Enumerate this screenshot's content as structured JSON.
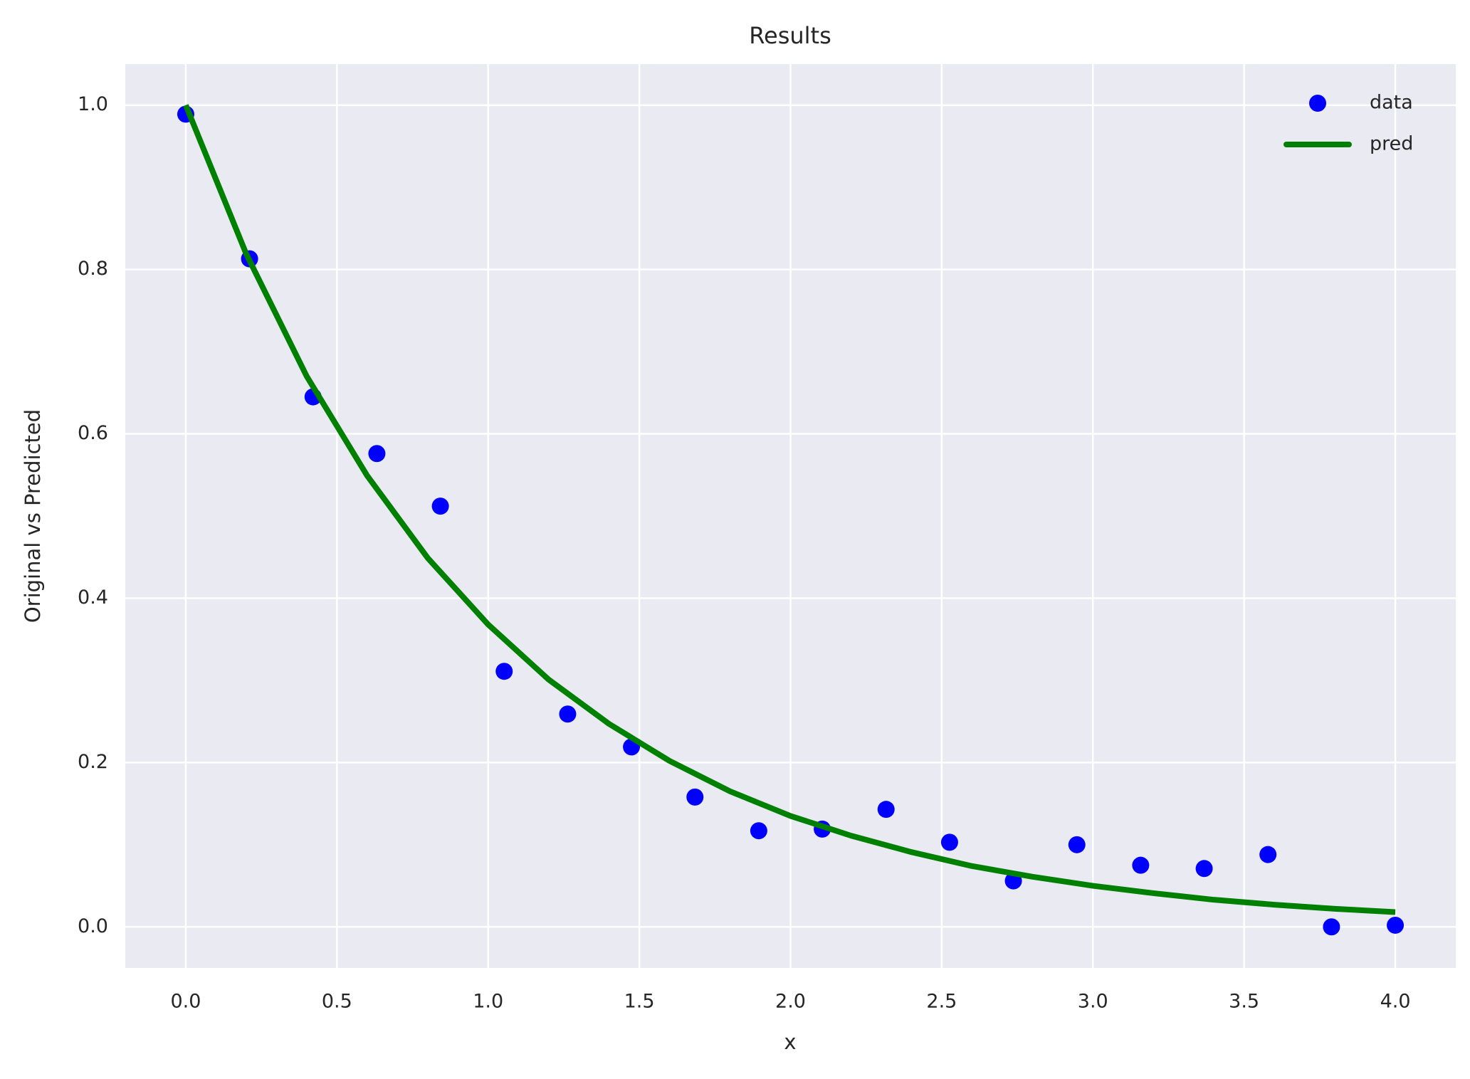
{
  "chart_data": {
    "type": "line",
    "title": "Results",
    "x_label": "x",
    "y_label": "Original vs Predicted",
    "xlim": [
      -0.2,
      4.2
    ],
    "ylim": [
      -0.05,
      1.05
    ],
    "xticks": [
      {
        "value": 0,
        "label": "0.0"
      },
      0.5,
      {
        "value": 1,
        "label": "1.0"
      },
      1.5,
      {
        "value": 2,
        "label": "2.0"
      },
      2.5,
      {
        "value": 3,
        "label": "3.0"
      },
      3.5,
      {
        "value": 4,
        "label": "4.0"
      }
    ],
    "yticks": [
      {
        "value": 0,
        "label": "0.0"
      },
      0.2,
      0.4,
      0.6,
      0.8,
      {
        "value": 1,
        "label": "1.0"
      }
    ],
    "grid": true,
    "legend": "upper right",
    "series": [
      {
        "name": "data",
        "color": "#0000ff",
        "mode": "markers",
        "x": [
          0,
          0.211,
          0.421,
          0.632,
          0.842,
          1.053,
          1.263,
          1.474,
          1.684,
          1.895,
          2.105,
          2.316,
          2.526,
          2.737,
          2.947,
          3.158,
          3.368,
          3.579,
          3.789,
          4.0
        ],
        "values": [
          0.989,
          0.813,
          0.645,
          0.576,
          0.512,
          0.311,
          0.259,
          0.219,
          0.158,
          0.117,
          0.119,
          0.143,
          0.103,
          0.056,
          0.1,
          0.075,
          0.071,
          0.088,
          0.0,
          0.002
        ]
      },
      {
        "name": "pred",
        "color": "#008000",
        "mode": "line",
        "x": [
          0,
          0.2,
          0.4,
          0.6,
          0.8,
          1.0,
          1.2,
          1.4,
          1.6,
          1.8,
          2.0,
          2.2,
          2.4,
          2.6,
          2.8,
          3.0,
          3.2,
          3.4,
          3.6,
          3.8,
          4.0
        ],
        "values": [
          1.0,
          0.819,
          0.67,
          0.549,
          0.449,
          0.368,
          0.301,
          0.247,
          0.202,
          0.165,
          0.135,
          0.111,
          0.091,
          0.074,
          0.061,
          0.05,
          0.041,
          0.033,
          0.027,
          0.022,
          0.018
        ]
      }
    ]
  }
}
